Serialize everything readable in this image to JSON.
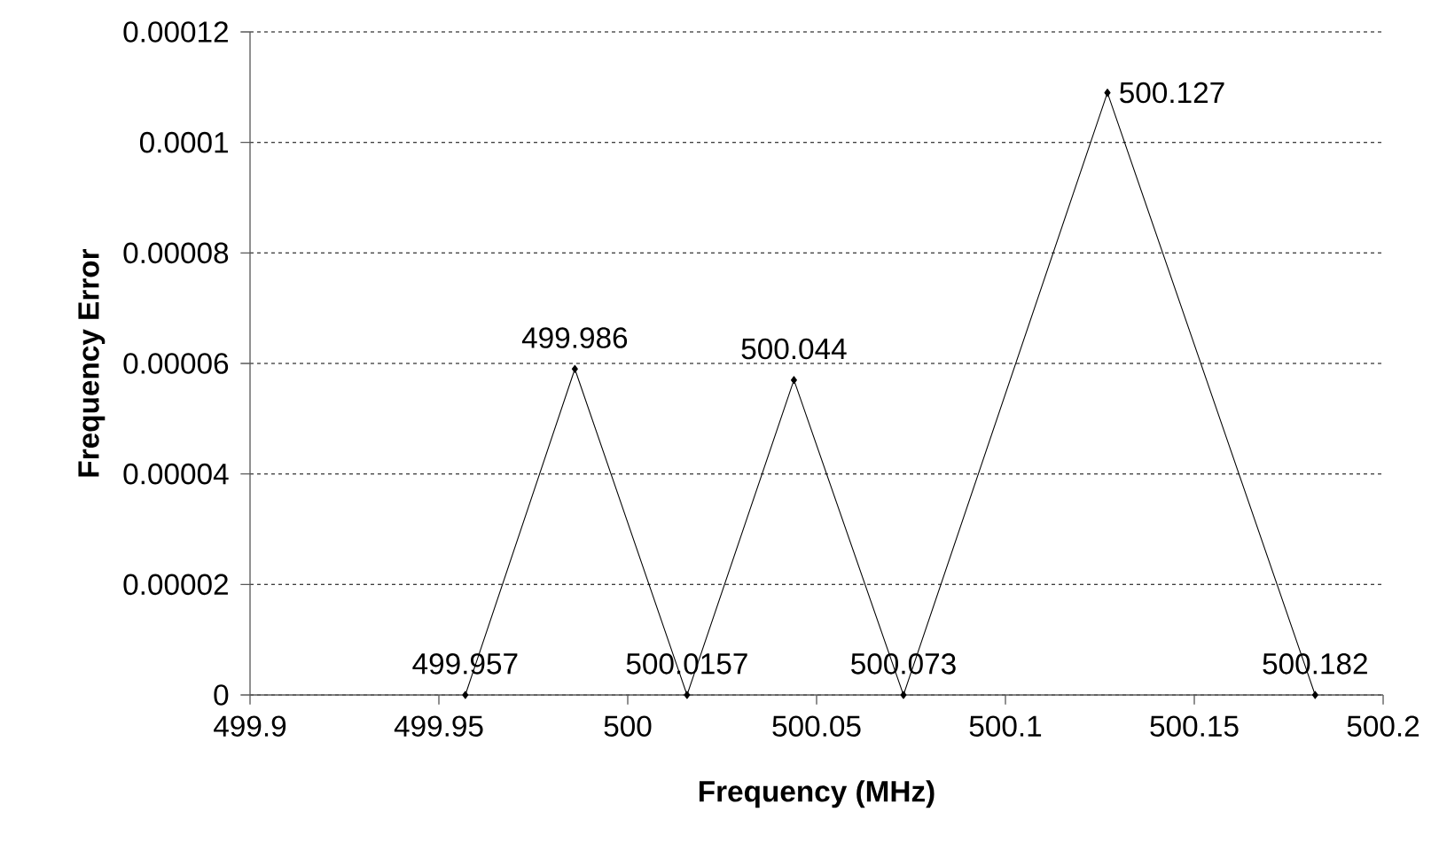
{
  "chart_data": {
    "type": "line",
    "xlabel": "Frequency (MHz)",
    "ylabel": "Frequency Error",
    "x": [
      499.957,
      499.986,
      500.0157,
      500.044,
      500.073,
      500.127,
      500.182
    ],
    "values": [
      0,
      5.9e-05,
      0,
      5.7e-05,
      0,
      0.000109,
      0
    ],
    "annotations": [
      {
        "text": "499.957",
        "x": 499.957,
        "y": 0
      },
      {
        "text": "499.986",
        "x": 499.986,
        "y": 5.9e-05
      },
      {
        "text": "500.0157",
        "x": 500.0157,
        "y": 0
      },
      {
        "text": "500.044",
        "x": 500.044,
        "y": 5.7e-05
      },
      {
        "text": "500.073",
        "x": 500.073,
        "y": 0
      },
      {
        "text": "500.127",
        "x": 500.127,
        "y": 0.000109
      },
      {
        "text": "500.182",
        "x": 500.182,
        "y": 0
      }
    ],
    "color": "#000000",
    "marker": "diamond",
    "line_style": "solid",
    "grid": "y",
    "xlim": [
      499.9,
      500.2
    ],
    "xticks": [
      499.9,
      499.95,
      500,
      500.05,
      500.1,
      500.15,
      500.2
    ],
    "ylim": [
      0,
      0.00012
    ],
    "yticks": [
      0,
      {
        "value": 2e-05,
        "label": "0.00002"
      },
      {
        "value": 4e-05,
        "label": "0.00004"
      },
      {
        "value": 6e-05,
        "label": "0.00006"
      },
      {
        "value": 8e-05,
        "label": "0.00008"
      },
      {
        "value": 0.0001,
        "label": "0.0001"
      },
      {
        "value": 0.00012,
        "label": "0.00012"
      }
    ]
  }
}
